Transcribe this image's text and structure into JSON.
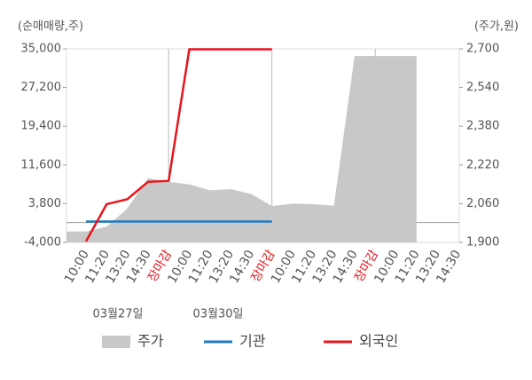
{
  "chart_data": {
    "type": "line",
    "y_axis_label": "(순매매량,주)",
    "y2_axis_label": "(주가,원)",
    "categories": [
      "10:00",
      "11:20",
      "13:20",
      "14:30",
      "장마감",
      "10:00",
      "11:20",
      "13:20",
      "14:30",
      "장마감",
      "10:00",
      "11:20",
      "13:20",
      "14:30",
      "장마감",
      "10:00",
      "11:20",
      "13:20",
      "14:30"
    ],
    "highlight_categories": [
      4,
      9,
      14
    ],
    "highlight_color": "#e8141b",
    "dates": [
      "03월27일",
      "03월30일"
    ],
    "ylim": [
      -4000,
      35000
    ],
    "yticks": [
      {
        "value": -4000,
        "label": "-4,000"
      },
      {
        "value": 3800,
        "label": "3,800"
      },
      {
        "value": 11600,
        "label": "11,600"
      },
      {
        "value": 19400,
        "label": "19,400"
      },
      {
        "value": 27200,
        "label": "27,200"
      },
      {
        "value": 35000,
        "label": "35,000"
      }
    ],
    "y2lim": [
      1900,
      2700
    ],
    "y2ticks": [
      {
        "value": 1900,
        "label": "1,900"
      },
      {
        "value": 2060,
        "label": "2,060"
      },
      {
        "value": 2220,
        "label": "2,220"
      },
      {
        "value": 2380,
        "label": "2,380"
      },
      {
        "value": 2540,
        "label": "2,540"
      },
      {
        "value": 2700,
        "label": "2,700"
      }
    ],
    "series": [
      {
        "name": "주가",
        "kind": "area",
        "axis": "y2",
        "color": "#c8c8c8",
        "values": [
          1945,
          1965,
          2040,
          2165,
          2150,
          2140,
          2115,
          2120,
          2100,
          2050,
          2060,
          2058,
          2052,
          2670,
          2670,
          2670,
          2670,
          null,
          null
        ]
      },
      {
        "name": "기관",
        "kind": "line",
        "color": "#1f7bc0",
        "values": [
          200,
          200,
          200,
          200,
          200,
          200,
          200,
          200,
          200,
          200,
          null,
          null,
          null,
          null,
          null,
          null,
          null,
          null,
          null
        ]
      },
      {
        "name": "외국인",
        "kind": "line",
        "color": "#e8141b",
        "values": [
          -3800,
          3700,
          4700,
          8200,
          8400,
          34900,
          34900,
          34900,
          34900,
          34900,
          null,
          null,
          null,
          null,
          null,
          null,
          null,
          null,
          null
        ]
      }
    ]
  }
}
